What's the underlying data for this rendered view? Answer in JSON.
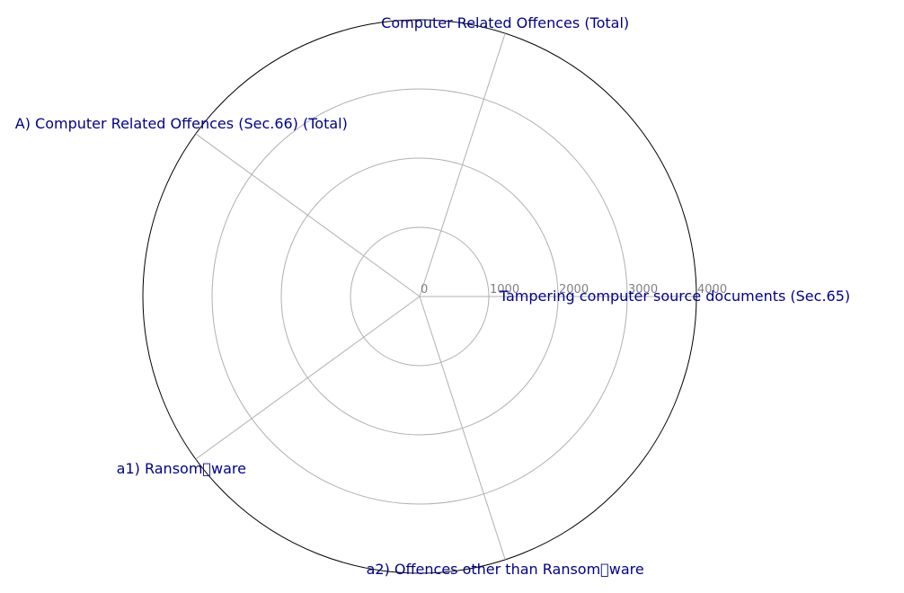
{
  "chart_data": {
    "type": "radar",
    "categories": [
      "Tampering computer source documents (Sec.65)",
      "Computer Related Offences (Total)",
      "A) Computer Related Offences (Sec.66) (Total)",
      "a1) Ransom\u0000ware",
      "a2) Offences other than Ransom\u0000ware"
    ],
    "series": [
      {
        "values": [
          0,
          0,
          0,
          0,
          0
        ]
      }
    ],
    "radial_ticks": [
      "0",
      "1000",
      "2000",
      "3000",
      "4000"
    ],
    "radial_tick_values": [
      0,
      1000,
      2000,
      3000,
      4000
    ],
    "rlim": [
      0,
      4000
    ],
    "grid": true,
    "colors": {
      "label": "#00008b",
      "grid": "#b0b0b0",
      "tick": "#808080",
      "frame": "#000000"
    }
  }
}
